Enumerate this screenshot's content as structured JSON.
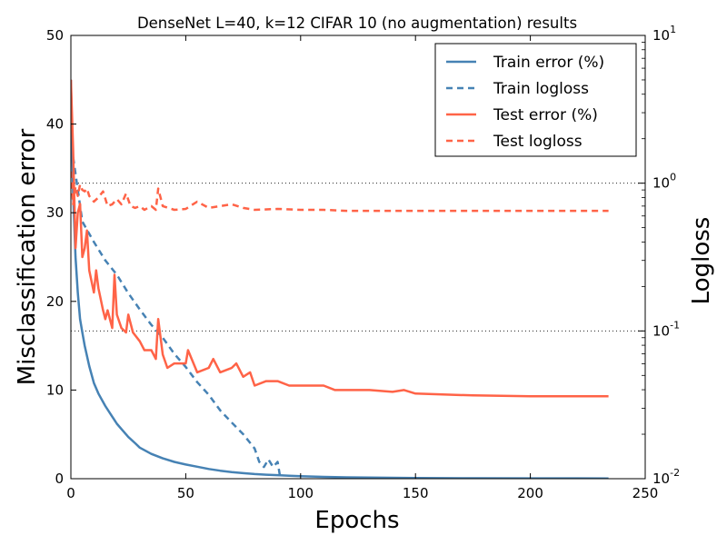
{
  "chart_data": {
    "type": "line",
    "title": "DenseNet L=40, k=12 CIFAR 10 (no augmentation) results",
    "xlabel": "Epochs",
    "ylabel": "Misclassification error",
    "y2label": "Logloss",
    "xlim": [
      0,
      250
    ],
    "ylim": [
      0,
      50
    ],
    "y2lim": [
      0.01,
      10
    ],
    "y2scale": "log",
    "grid": "horizontal dotted lines at right-axis decades",
    "legend_position": "top-right",
    "xticks": [
      "0",
      "50",
      "100",
      "150",
      "200",
      "250"
    ],
    "yticks": [
      "0",
      "10",
      "20",
      "30",
      "40",
      "50"
    ],
    "y2ticks": [
      {
        "value": 0.01,
        "base": "10",
        "exp": "-2"
      },
      {
        "value": 0.1,
        "base": "10",
        "exp": "-1"
      },
      {
        "value": 1,
        "base": "10",
        "exp": "0"
      },
      {
        "value": 10,
        "base": "10",
        "exp": "1"
      }
    ],
    "colors": {
      "train": "#4682b4",
      "test": "#ff6347"
    },
    "series": [
      {
        "name": "Train error (%)",
        "axis": "left",
        "style": "solid",
        "color": "#4682b4",
        "x": [
          0,
          1,
          2,
          3,
          4,
          5,
          6,
          8,
          10,
          12,
          15,
          18,
          20,
          22,
          25,
          28,
          30,
          35,
          40,
          45,
          50,
          55,
          60,
          65,
          70,
          75,
          80,
          85,
          90,
          95,
          100,
          110,
          120,
          130,
          150,
          175,
          200,
          234
        ],
        "y": [
          45,
          32,
          25,
          21,
          18,
          16.5,
          15,
          12.7,
          10.8,
          9.6,
          8.2,
          7,
          6.2,
          5.6,
          4.7,
          4,
          3.5,
          2.8,
          2.3,
          1.9,
          1.6,
          1.35,
          1.1,
          0.9,
          0.75,
          0.62,
          0.52,
          0.45,
          0.4,
          0.33,
          0.28,
          0.2,
          0.15,
          0.12,
          0.08,
          0.05,
          0.04,
          0.03
        ]
      },
      {
        "name": "Train logloss",
        "axis": "right",
        "style": "dashed",
        "color": "#4682b4",
        "x": [
          1,
          5,
          10,
          15,
          20,
          25,
          30,
          35,
          40,
          45,
          50,
          55,
          60,
          65,
          70,
          75,
          80,
          82,
          84,
          86,
          88,
          90,
          91
        ],
        "y": [
          1.5,
          0.55,
          0.4,
          0.3,
          0.24,
          0.18,
          0.14,
          0.11,
          0.09,
          0.07,
          0.057,
          0.045,
          0.037,
          0.029,
          0.024,
          0.02,
          0.016,
          0.013,
          0.012,
          0.0135,
          0.012,
          0.013,
          0.0105
        ]
      },
      {
        "name": "Test error (%)",
        "axis": "left",
        "style": "solid",
        "color": "#ff6347",
        "x": [
          0,
          1,
          2,
          3,
          4,
          5,
          6,
          7,
          8,
          10,
          11,
          12,
          14,
          15,
          16,
          18,
          19,
          20,
          22,
          24,
          25,
          27,
          30,
          32,
          35,
          37,
          38,
          40,
          42,
          45,
          50,
          51,
          55,
          60,
          62,
          65,
          70,
          72,
          75,
          78,
          80,
          85,
          90,
          95,
          100,
          110,
          115,
          120,
          130,
          140,
          145,
          150,
          175,
          200,
          234
        ],
        "y": [
          45,
          37,
          26,
          30,
          31,
          25,
          26,
          28,
          23.5,
          21,
          23.5,
          21.5,
          19,
          18,
          19,
          17,
          23,
          18.5,
          17,
          16.5,
          18.5,
          16.5,
          15.5,
          14.5,
          14.5,
          13.5,
          18,
          14,
          12.5,
          13,
          13,
          14.5,
          12,
          12.5,
          13.5,
          12,
          12.5,
          13,
          11.5,
          12,
          10.5,
          11,
          11,
          10.5,
          10.5,
          10.5,
          10,
          10,
          10,
          9.8,
          10,
          9.6,
          9.4,
          9.3,
          9.3
        ]
      },
      {
        "name": "Test logloss",
        "axis": "right",
        "style": "dashed",
        "color": "#ff6347",
        "x": [
          0,
          1,
          2,
          3,
          4,
          5,
          6,
          7,
          8,
          10,
          12,
          14,
          16,
          18,
          20,
          22,
          24,
          26,
          28,
          30,
          32,
          35,
          37,
          38,
          40,
          45,
          50,
          55,
          60,
          65,
          70,
          75,
          80,
          90,
          100,
          110,
          120,
          130,
          150,
          175,
          200,
          234
        ],
        "y": [
          1.2,
          0.72,
          0.95,
          0.82,
          0.98,
          0.9,
          0.88,
          0.92,
          0.82,
          0.75,
          0.8,
          0.88,
          0.7,
          0.72,
          0.78,
          0.72,
          0.85,
          0.7,
          0.68,
          0.7,
          0.66,
          0.7,
          0.66,
          0.92,
          0.7,
          0.66,
          0.67,
          0.75,
          0.68,
          0.7,
          0.72,
          0.68,
          0.66,
          0.67,
          0.66,
          0.66,
          0.65,
          0.65,
          0.65,
          0.65,
          0.65,
          0.65
        ]
      }
    ]
  }
}
